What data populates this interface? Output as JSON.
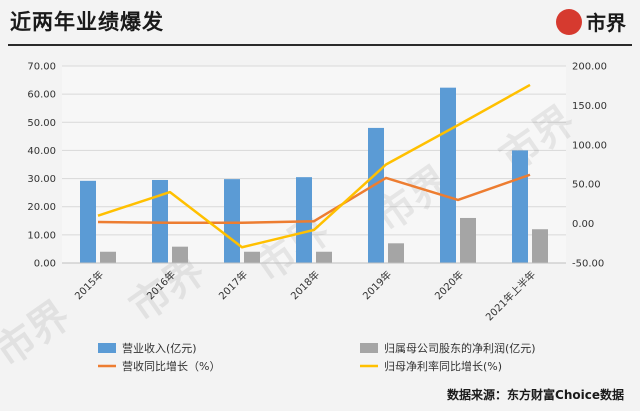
{
  "header": {
    "title": "近两年业绩爆发",
    "logo_text": "市界"
  },
  "footer": {
    "source": "数据来源：东方财富Choice数据"
  },
  "chart_data": {
    "type": "bar",
    "categories": [
      "2015年",
      "2016年",
      "2017年",
      "2018年",
      "2019年",
      "2020年",
      "2021年上半年"
    ],
    "left_axis": {
      "ylim": [
        0,
        70
      ],
      "ticks": [
        "0.00",
        "10.00",
        "20.00",
        "30.00",
        "40.00",
        "50.00",
        "60.00",
        "70.00"
      ]
    },
    "right_axis": {
      "ylim": [
        -50,
        200
      ],
      "ticks": [
        "-50.00",
        "0.00",
        "50.00",
        "100.00",
        "150.00",
        "200.00"
      ]
    },
    "series": [
      {
        "name": "营业收入(亿元)",
        "kind": "bar",
        "axis": "left",
        "color": "#5b9bd5",
        "values": [
          29.2,
          29.5,
          29.8,
          30.5,
          48.0,
          62.3,
          40.0
        ]
      },
      {
        "name": "归属母公司股东的净利润(亿元)",
        "kind": "bar",
        "axis": "left",
        "color": "#a5a5a5",
        "values": [
          4.0,
          5.8,
          4.0,
          4.0,
          7.0,
          16.0,
          12.0
        ]
      },
      {
        "name": "营收同比增长（%）",
        "kind": "line",
        "axis": "right",
        "color": "#ed7d31",
        "values": [
          2,
          1,
          1,
          3,
          58,
          30,
          62
        ]
      },
      {
        "name": "归母净利率同比增长(%)",
        "kind": "line",
        "axis": "right",
        "color": "#ffc000",
        "values": [
          10,
          40,
          -30,
          -8,
          75,
          125,
          176
        ]
      }
    ],
    "legend": "bottom",
    "grid": true,
    "watermark": "市界"
  }
}
